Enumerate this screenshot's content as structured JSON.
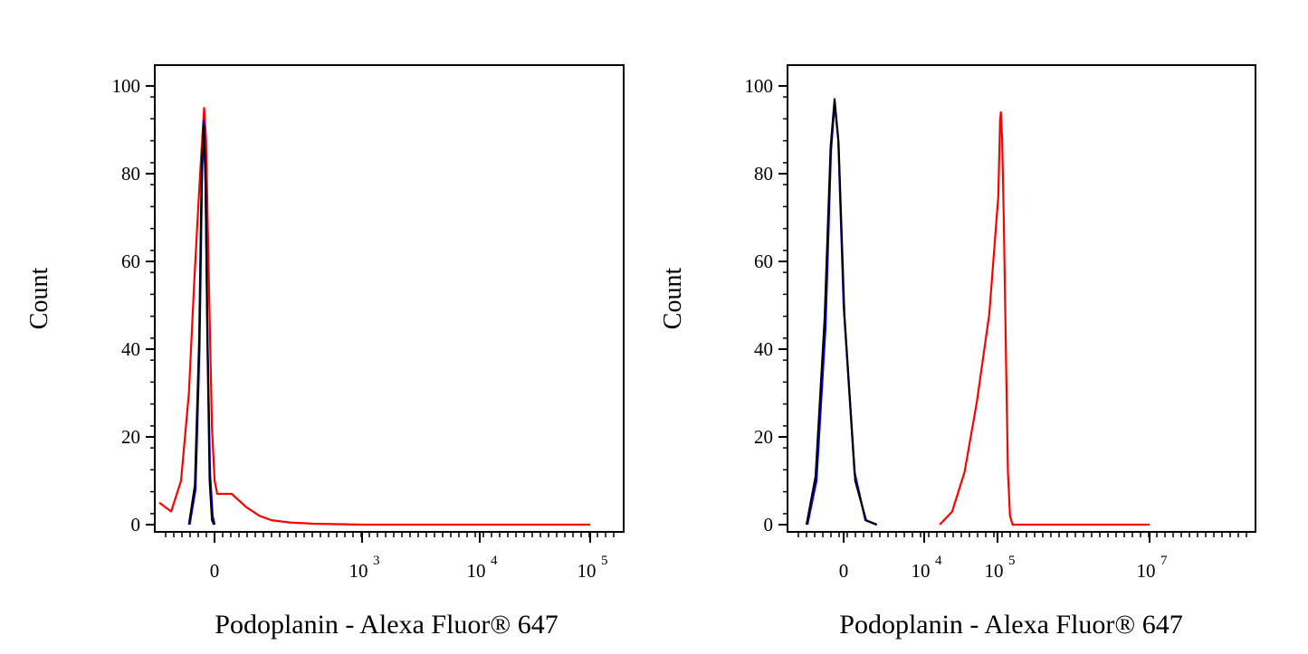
{
  "chart_data": [
    {
      "type": "line",
      "title": "",
      "xlabel": "Podoplanin - Alexa Fluor® 647",
      "ylabel": "Count",
      "ylim": [
        0,
        100
      ],
      "yticks": [
        "0",
        "20",
        "40",
        "60",
        "80",
        "100"
      ],
      "xticks": [
        {
          "label": "0",
          "sup": ""
        },
        {
          "label": "10",
          "sup": "3"
        },
        {
          "label": "10",
          "sup": "4"
        },
        {
          "label": "10",
          "sup": "5"
        }
      ],
      "grid": false,
      "legend": "none",
      "series": [
        {
          "color": "#ff0000",
          "points": [
            [
              -880,
              5
            ],
            [
              -700,
              3
            ],
            [
              -550,
              10
            ],
            [
              -430,
              30
            ],
            [
              -350,
              55
            ],
            [
              -290,
              72
            ],
            [
              -240,
              85
            ],
            [
              -200,
              95
            ],
            [
              -170,
              88
            ],
            [
              -120,
              50
            ],
            [
              -80,
              22
            ],
            [
              -40,
              10
            ],
            [
              0,
              7
            ],
            [
              40,
              7
            ],
            [
              80,
              4
            ],
            [
              150,
              2
            ],
            [
              250,
              1
            ],
            [
              400,
              0.5
            ],
            [
              600,
              0.2
            ],
            [
              1000,
              0
            ],
            [
              100000,
              0
            ]
          ]
        },
        {
          "color": "#0000ff",
          "points": [
            [
              -420,
              0
            ],
            [
              -330,
              8
            ],
            [
              -270,
              40
            ],
            [
              -230,
              80
            ],
            [
              -205,
              92
            ],
            [
              -180,
              80
            ],
            [
              -150,
              45
            ],
            [
              -110,
              12
            ],
            [
              -70,
              2
            ],
            [
              -40,
              0
            ]
          ]
        },
        {
          "color": "#000000",
          "points": [
            [
              -430,
              0
            ],
            [
              -340,
              9
            ],
            [
              -275,
              42
            ],
            [
              -235,
              82
            ],
            [
              -205,
              91
            ],
            [
              -178,
              78
            ],
            [
              -150,
              42
            ],
            [
              -115,
              10
            ],
            [
              -80,
              1
            ],
            [
              -50,
              0
            ]
          ]
        }
      ]
    },
    {
      "type": "line",
      "title": "",
      "xlabel": "Podoplanin - Alexa Fluor® 647",
      "ylabel": "Count",
      "ylim": [
        0,
        100
      ],
      "yticks": [
        "0",
        "20",
        "40",
        "60",
        "80",
        "100"
      ],
      "xticks": [
        {
          "label": "0",
          "sup": ""
        },
        {
          "label": "10",
          "sup": "4"
        },
        {
          "label": "10",
          "sup": "5"
        },
        {
          "label": "10",
          "sup": "7"
        }
      ],
      "grid": false,
      "legend": "none",
      "series": [
        {
          "color": "#ff0000",
          "points": [
            [
              30000,
              0
            ],
            [
              45000,
              3
            ],
            [
              60000,
              12
            ],
            [
              75000,
              28
            ],
            [
              90000,
              48
            ],
            [
              110000,
              75
            ],
            [
              130000,
              92
            ],
            [
              140000,
              94
            ],
            [
              155000,
              88
            ],
            [
              175000,
              70
            ],
            [
              200000,
              40
            ],
            [
              225000,
              12
            ],
            [
              250000,
              2
            ],
            [
              280000,
              0
            ],
            [
              10000000,
              0
            ]
          ]
        },
        {
          "color": "#0000ff",
          "points": [
            [
              -2000,
              0
            ],
            [
              -1500,
              10
            ],
            [
              -1000,
              45
            ],
            [
              -700,
              85
            ],
            [
              -500,
              96
            ],
            [
              -300,
              88
            ],
            [
              0,
              50
            ],
            [
              300,
              12
            ],
            [
              600,
              1
            ],
            [
              900,
              0
            ]
          ]
        },
        {
          "color": "#000000",
          "points": [
            [
              -2050,
              0
            ],
            [
              -1550,
              11
            ],
            [
              -1050,
              47
            ],
            [
              -720,
              86
            ],
            [
              -500,
              97
            ],
            [
              -280,
              87
            ],
            [
              20,
              48
            ],
            [
              320,
              10
            ],
            [
              620,
              1
            ],
            [
              920,
              0
            ]
          ]
        }
      ]
    }
  ]
}
